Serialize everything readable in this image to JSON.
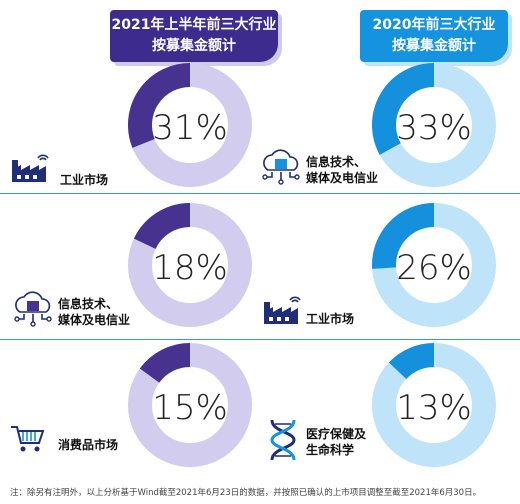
{
  "header": {
    "left_line1": "2021年上半年前三大行业",
    "left_line2": "按募集金额计",
    "right_line1": "2020年前三大行业",
    "right_line2": "按募集金额计"
  },
  "colors": {
    "left_fill": "#47338f",
    "left_track": "#d2cdee",
    "right_fill": "#1590dc",
    "right_track": "#bfe3f8"
  },
  "chart_data": [
    {
      "type": "pie",
      "title": "2021年上半年前三大行业 按募集金额计",
      "categories": [
        "工业市场"
      ],
      "values": [
        31
      ],
      "label": "31%"
    },
    {
      "type": "pie",
      "title": "2021年上半年前三大行业 按募集金额计",
      "categories": [
        "信息技术、媒体及电信业"
      ],
      "values": [
        18
      ],
      "label": "18%"
    },
    {
      "type": "pie",
      "title": "2021年上半年前三大行业 按募集金额计",
      "categories": [
        "消费品市场"
      ],
      "values": [
        15
      ],
      "label": "15%"
    },
    {
      "type": "pie",
      "title": "2020年前三大行业 按募集金额计",
      "categories": [
        "信息技术、媒体及电信业"
      ],
      "values": [
        33
      ],
      "label": "33%"
    },
    {
      "type": "pie",
      "title": "2020年前三大行业 按募集金额计",
      "categories": [
        "工业市场"
      ],
      "values": [
        26
      ],
      "label": "26%"
    },
    {
      "type": "pie",
      "title": "2020年前三大行业 按募集金额计",
      "categories": [
        "医疗保健及生命科学"
      ],
      "values": [
        13
      ],
      "label": "13%"
    }
  ],
  "categories": {
    "left_1": "工业市场",
    "left_2_line1": "信息技术、",
    "left_2_line2": "媒体及电信业",
    "left_3": "消费品市场",
    "right_1_line1": "信息技术、",
    "right_1_line2": "媒体及电信业",
    "right_2": "工业市场",
    "right_3_line1": "医疗保健及",
    "right_3_line2": "生命科学"
  },
  "icons": [
    "factory-icon",
    "tmt-icon",
    "shopping-cart-icon",
    "dna-icon"
  ],
  "footnote": "注：除另有注明外，以上分析基于Wind截至2021年6月23日的数据，并按照已确认的上市项目调整至截至2021年6月30日。"
}
